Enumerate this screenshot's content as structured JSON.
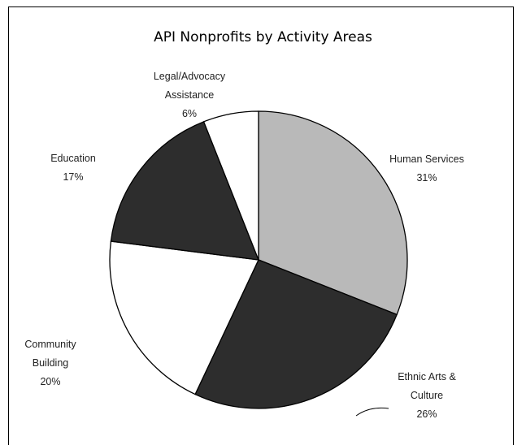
{
  "chart_data": {
    "type": "pie",
    "title": "API Nonprofits by Activity Areas",
    "categories": [
      "Human Services",
      "Ethnic Arts & Culture",
      "Community Building",
      "Education",
      "Legal/Advocacy Assistance"
    ],
    "values": [
      31,
      26,
      20,
      17,
      6
    ],
    "value_labels": [
      "31%",
      "26%",
      "20%",
      "17%",
      "6%"
    ],
    "colors": [
      "#b9b9b9",
      "#2d2d2d",
      "#ffffff",
      "#2d2d2d",
      "#ffffff"
    ]
  }
}
